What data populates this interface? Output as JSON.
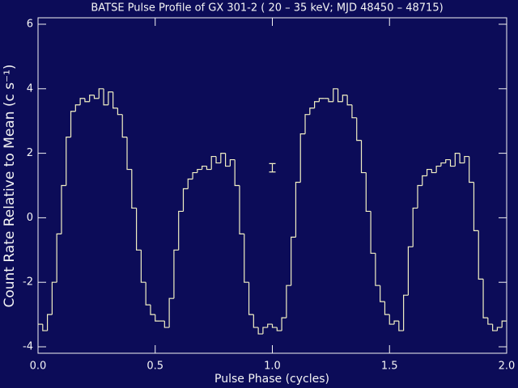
{
  "chart_data": {
    "type": "histogram",
    "title": "BATSE Pulse Profile of GX 301-2 ( 20 – 35 keV; MJD 48450 – 48715)",
    "xlabel": "Pulse Phase (cycles)",
    "ylabel": "Count Rate Relative to Mean (c s⁻¹)",
    "bins": [
      0,
      0.02,
      0.04,
      0.06,
      0.08,
      0.1,
      0.12,
      0.14,
      0.16,
      0.18,
      0.2,
      0.22,
      0.24,
      0.26,
      0.28,
      0.3,
      0.32,
      0.34,
      0.36,
      0.38,
      0.4,
      0.42,
      0.44,
      0.46,
      0.48,
      0.5,
      0.52,
      0.54,
      0.56,
      0.58,
      0.6,
      0.62,
      0.64,
      0.66,
      0.68,
      0.7,
      0.72,
      0.74,
      0.76,
      0.78,
      0.8,
      0.82,
      0.84,
      0.86,
      0.88,
      0.9,
      0.92,
      0.94,
      0.96,
      0.98,
      1,
      1.02,
      1.04,
      1.06,
      1.08,
      1.1,
      1.12,
      1.14,
      1.16,
      1.18,
      1.2,
      1.22,
      1.24,
      1.26,
      1.28,
      1.3,
      1.32,
      1.34,
      1.36,
      1.38,
      1.4,
      1.42,
      1.44,
      1.46,
      1.48,
      1.5,
      1.52,
      1.54,
      1.56,
      1.58,
      1.6,
      1.62,
      1.64,
      1.66,
      1.68,
      1.7,
      1.72,
      1.74,
      1.76,
      1.78,
      1.8,
      1.82,
      1.84,
      1.86,
      1.88,
      1.9,
      1.92,
      1.94,
      1.96,
      1.98,
      2
    ],
    "counts": [
      -3.3,
      -3.5,
      -3.0,
      -2.0,
      -0.5,
      1.0,
      2.5,
      3.3,
      3.5,
      3.7,
      3.6,
      3.8,
      3.7,
      4.0,
      3.5,
      3.9,
      3.4,
      3.2,
      2.5,
      1.5,
      0.3,
      -1.0,
      -2.0,
      -2.7,
      -3.0,
      -3.2,
      -3.2,
      -3.4,
      -2.5,
      -1.0,
      0.2,
      0.9,
      1.2,
      1.4,
      1.5,
      1.6,
      1.5,
      1.9,
      1.7,
      2.0,
      1.6,
      1.8,
      1.0,
      -0.5,
      -2.0,
      -3.0,
      -3.4,
      -3.6,
      -3.4,
      -3.3,
      -3.4,
      -3.5,
      -3.1,
      -2.1,
      -0.6,
      1.1,
      2.6,
      3.2,
      3.4,
      3.6,
      3.7,
      3.7,
      3.6,
      4.0,
      3.6,
      3.8,
      3.5,
      3.1,
      2.4,
      1.4,
      0.2,
      -1.1,
      -2.1,
      -2.6,
      -3.0,
      -3.3,
      -3.2,
      -3.5,
      -2.4,
      -0.9,
      0.3,
      1.0,
      1.3,
      1.5,
      1.4,
      1.6,
      1.7,
      1.8,
      1.6,
      2.0,
      1.7,
      1.9,
      1.1,
      -0.4,
      -1.9,
      -3.1,
      -3.3,
      -3.5,
      -3.4,
      -3.2
    ],
    "color": "#f2f0c4",
    "errorbar": {
      "x": 1.0,
      "y": 1.55,
      "err": 0.13
    },
    "xlim": [
      0,
      2
    ],
    "ylim": [
      -4.2,
      6.2
    ],
    "xticks": [
      {
        "value": 0,
        "label": "0.0"
      },
      0.5,
      {
        "value": 1,
        "label": "1.0"
      },
      1.5,
      {
        "value": 2,
        "label": "2.0"
      }
    ],
    "yticks": [
      -4,
      -2,
      0,
      2,
      4,
      6
    ]
  }
}
